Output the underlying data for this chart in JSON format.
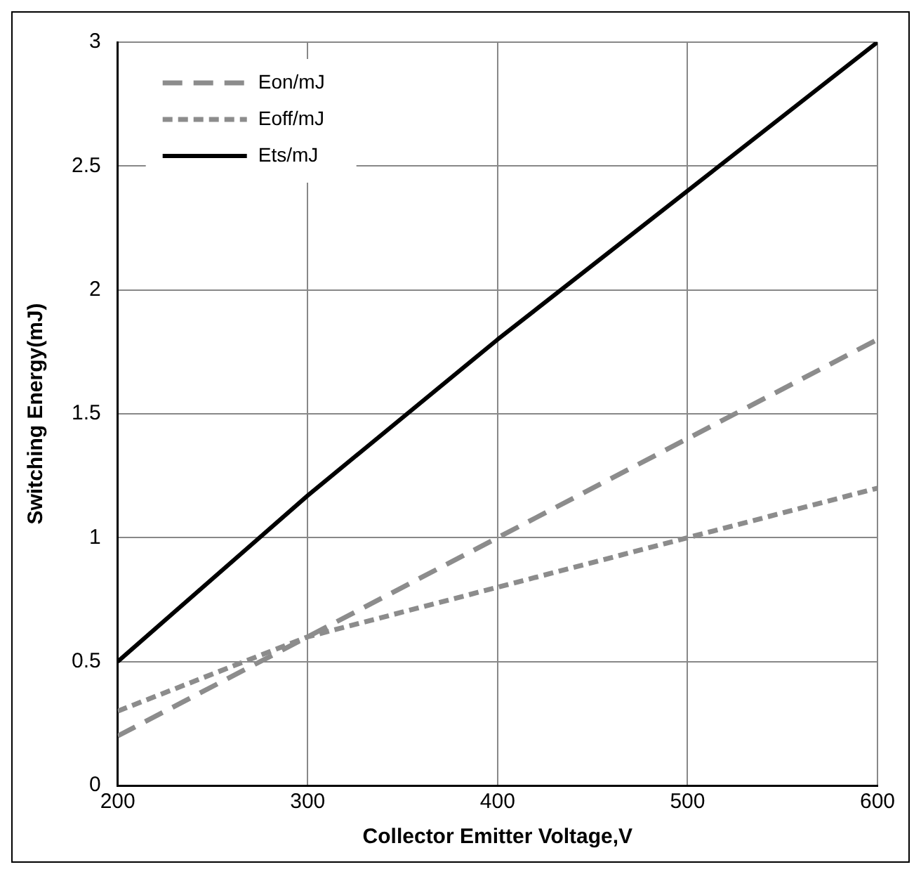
{
  "chart_data": {
    "type": "line",
    "xlabel": "Collector Emitter Voltage,V",
    "ylabel": "Switching Energy(mJ)",
    "x": [
      200,
      300,
      400,
      500,
      600
    ],
    "series": [
      {
        "name": "Eon/mJ",
        "color": "#8c8c8c",
        "line_style": "dashed",
        "values": [
          0.2,
          0.6,
          1.0,
          1.4,
          1.8
        ]
      },
      {
        "name": "Eoff/mJ",
        "color": "#8c8c8c",
        "line_style": "dotted",
        "values": [
          0.3,
          0.6,
          0.8,
          1.0,
          1.2
        ]
      },
      {
        "name": "Ets/mJ",
        "color": "#000000",
        "line_style": "solid",
        "values": [
          0.5,
          1.17,
          1.8,
          2.4,
          3.0
        ]
      }
    ],
    "xlim": [
      200,
      600
    ],
    "xticks": [
      200,
      300,
      400,
      500,
      600
    ],
    "ylim": [
      0,
      3
    ],
    "yticks": [
      0,
      0.5,
      1,
      1.5,
      2,
      2.5,
      3
    ],
    "grid": true,
    "legend": "top left",
    "marker": "none"
  }
}
